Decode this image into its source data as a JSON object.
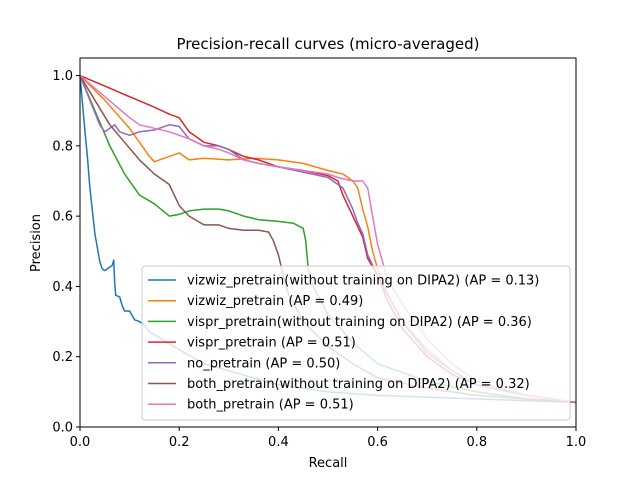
{
  "chart_data": {
    "type": "line",
    "title": "Precision-recall curves (micro-averaged)",
    "xlabel": "Recall",
    "ylabel": "Precision",
    "xlim": [
      0,
      1
    ],
    "ylim": [
      0,
      1.05
    ],
    "xticks": [
      "0.0",
      "0.2",
      "0.4",
      "0.6",
      "0.8",
      "1.0"
    ],
    "yticks": [
      "0.0",
      "0.2",
      "0.4",
      "0.6",
      "0.8",
      "1.0"
    ],
    "grid": false,
    "legend_position": "lower-right",
    "series": [
      {
        "name": "vizwiz_pretrain(without training on DIPA2) (AP = 0.13)",
        "color": "#1f77b4",
        "points": [
          [
            0,
            1.0
          ],
          [
            0.005,
            0.92
          ],
          [
            0.01,
            0.84
          ],
          [
            0.015,
            0.77
          ],
          [
            0.02,
            0.68
          ],
          [
            0.03,
            0.55
          ],
          [
            0.04,
            0.47
          ],
          [
            0.045,
            0.45
          ],
          [
            0.05,
            0.445
          ],
          [
            0.06,
            0.455
          ],
          [
            0.065,
            0.46
          ],
          [
            0.068,
            0.475
          ],
          [
            0.07,
            0.41
          ],
          [
            0.072,
            0.375
          ],
          [
            0.08,
            0.37
          ],
          [
            0.085,
            0.345
          ],
          [
            0.09,
            0.33
          ],
          [
            0.1,
            0.33
          ],
          [
            0.11,
            0.305
          ],
          [
            0.12,
            0.3
          ],
          [
            0.13,
            0.29
          ],
          [
            0.14,
            0.27
          ],
          [
            0.16,
            0.255
          ],
          [
            0.2,
            0.22
          ],
          [
            0.25,
            0.18
          ],
          [
            0.3,
            0.16
          ],
          [
            0.35,
            0.14
          ],
          [
            0.4,
            0.12
          ],
          [
            0.45,
            0.11
          ],
          [
            0.5,
            0.1
          ],
          [
            0.6,
            0.09
          ],
          [
            0.7,
            0.085
          ],
          [
            0.8,
            0.08
          ],
          [
            0.9,
            0.075
          ],
          [
            1.0,
            0.07
          ]
        ]
      },
      {
        "name": "vizwiz_pretrain (AP = 0.49)",
        "color": "#ff7f0e",
        "points": [
          [
            0,
            1.0
          ],
          [
            0.05,
            0.93
          ],
          [
            0.1,
            0.85
          ],
          [
            0.13,
            0.79
          ],
          [
            0.14,
            0.77
          ],
          [
            0.15,
            0.755
          ],
          [
            0.18,
            0.77
          ],
          [
            0.2,
            0.78
          ],
          [
            0.22,
            0.76
          ],
          [
            0.25,
            0.765
          ],
          [
            0.3,
            0.76
          ],
          [
            0.35,
            0.765
          ],
          [
            0.4,
            0.76
          ],
          [
            0.45,
            0.75
          ],
          [
            0.5,
            0.73
          ],
          [
            0.53,
            0.72
          ],
          [
            0.55,
            0.7
          ],
          [
            0.56,
            0.68
          ],
          [
            0.57,
            0.62
          ],
          [
            0.58,
            0.57
          ],
          [
            0.59,
            0.5
          ],
          [
            0.6,
            0.45
          ],
          [
            0.62,
            0.38
          ],
          [
            0.65,
            0.3
          ],
          [
            0.7,
            0.22
          ],
          [
            0.75,
            0.16
          ],
          [
            0.8,
            0.12
          ],
          [
            0.9,
            0.09
          ],
          [
            1.0,
            0.07
          ]
        ]
      },
      {
        "name": "vispr_pretrain(without training on DIPA2) (AP = 0.36)",
        "color": "#2ca02c",
        "points": [
          [
            0,
            1.0
          ],
          [
            0.03,
            0.9
          ],
          [
            0.06,
            0.8
          ],
          [
            0.09,
            0.72
          ],
          [
            0.12,
            0.66
          ],
          [
            0.15,
            0.635
          ],
          [
            0.18,
            0.6
          ],
          [
            0.2,
            0.605
          ],
          [
            0.22,
            0.615
          ],
          [
            0.25,
            0.62
          ],
          [
            0.28,
            0.62
          ],
          [
            0.3,
            0.615
          ],
          [
            0.33,
            0.6
          ],
          [
            0.36,
            0.59
          ],
          [
            0.4,
            0.585
          ],
          [
            0.43,
            0.58
          ],
          [
            0.45,
            0.565
          ],
          [
            0.455,
            0.53
          ],
          [
            0.46,
            0.45
          ],
          [
            0.47,
            0.4
          ],
          [
            0.5,
            0.32
          ],
          [
            0.55,
            0.24
          ],
          [
            0.6,
            0.18
          ],
          [
            0.7,
            0.13
          ],
          [
            0.8,
            0.1
          ],
          [
            0.9,
            0.08
          ],
          [
            1.0,
            0.07
          ]
        ]
      },
      {
        "name": "vispr_pretrain (AP = 0.51)",
        "color": "#d62728",
        "points": [
          [
            0,
            1.0
          ],
          [
            0.05,
            0.97
          ],
          [
            0.1,
            0.94
          ],
          [
            0.15,
            0.91
          ],
          [
            0.18,
            0.89
          ],
          [
            0.2,
            0.88
          ],
          [
            0.22,
            0.84
          ],
          [
            0.25,
            0.81
          ],
          [
            0.28,
            0.8
          ],
          [
            0.3,
            0.79
          ],
          [
            0.33,
            0.77
          ],
          [
            0.36,
            0.76
          ],
          [
            0.4,
            0.74
          ],
          [
            0.45,
            0.73
          ],
          [
            0.5,
            0.715
          ],
          [
            0.52,
            0.7
          ],
          [
            0.53,
            0.66
          ],
          [
            0.55,
            0.6
          ],
          [
            0.56,
            0.57
          ],
          [
            0.57,
            0.54
          ],
          [
            0.58,
            0.48
          ],
          [
            0.6,
            0.43
          ],
          [
            0.62,
            0.36
          ],
          [
            0.65,
            0.28
          ],
          [
            0.7,
            0.2
          ],
          [
            0.75,
            0.15
          ],
          [
            0.8,
            0.12
          ],
          [
            0.9,
            0.09
          ],
          [
            1.0,
            0.07
          ]
        ]
      },
      {
        "name": "no_pretrain (AP = 0.50)",
        "color": "#9467bd",
        "points": [
          [
            0,
            1.0
          ],
          [
            0.02,
            0.93
          ],
          [
            0.04,
            0.86
          ],
          [
            0.05,
            0.84
          ],
          [
            0.07,
            0.86
          ],
          [
            0.08,
            0.84
          ],
          [
            0.1,
            0.83
          ],
          [
            0.12,
            0.84
          ],
          [
            0.15,
            0.845
          ],
          [
            0.18,
            0.86
          ],
          [
            0.2,
            0.855
          ],
          [
            0.22,
            0.82
          ],
          [
            0.25,
            0.8
          ],
          [
            0.28,
            0.8
          ],
          [
            0.3,
            0.79
          ],
          [
            0.33,
            0.76
          ],
          [
            0.36,
            0.75
          ],
          [
            0.4,
            0.74
          ],
          [
            0.45,
            0.725
          ],
          [
            0.5,
            0.71
          ],
          [
            0.53,
            0.68
          ],
          [
            0.55,
            0.62
          ],
          [
            0.56,
            0.58
          ],
          [
            0.57,
            0.55
          ],
          [
            0.58,
            0.49
          ],
          [
            0.6,
            0.43
          ],
          [
            0.63,
            0.35
          ],
          [
            0.66,
            0.28
          ],
          [
            0.7,
            0.21
          ],
          [
            0.75,
            0.16
          ],
          [
            0.8,
            0.12
          ],
          [
            0.9,
            0.09
          ],
          [
            1.0,
            0.07
          ]
        ]
      },
      {
        "name": "both_pretrain(without training on DIPA2) (AP = 0.32)",
        "color": "#8c564b",
        "points": [
          [
            0,
            1.0
          ],
          [
            0.03,
            0.93
          ],
          [
            0.06,
            0.86
          ],
          [
            0.09,
            0.81
          ],
          [
            0.12,
            0.76
          ],
          [
            0.15,
            0.72
          ],
          [
            0.18,
            0.69
          ],
          [
            0.2,
            0.63
          ],
          [
            0.22,
            0.6
          ],
          [
            0.25,
            0.575
          ],
          [
            0.28,
            0.575
          ],
          [
            0.3,
            0.565
          ],
          [
            0.33,
            0.56
          ],
          [
            0.36,
            0.56
          ],
          [
            0.38,
            0.555
          ],
          [
            0.39,
            0.53
          ],
          [
            0.4,
            0.49
          ],
          [
            0.41,
            0.43
          ],
          [
            0.42,
            0.38
          ],
          [
            0.45,
            0.3
          ],
          [
            0.5,
            0.23
          ],
          [
            0.55,
            0.18
          ],
          [
            0.6,
            0.14
          ],
          [
            0.7,
            0.11
          ],
          [
            0.8,
            0.09
          ],
          [
            0.9,
            0.08
          ],
          [
            1.0,
            0.07
          ]
        ]
      },
      {
        "name": "both_pretrain (AP = 0.51)",
        "color": "#e377c2",
        "points": [
          [
            0,
            1.0
          ],
          [
            0.05,
            0.94
          ],
          [
            0.1,
            0.88
          ],
          [
            0.12,
            0.86
          ],
          [
            0.15,
            0.85
          ],
          [
            0.18,
            0.84
          ],
          [
            0.2,
            0.83
          ],
          [
            0.22,
            0.82
          ],
          [
            0.25,
            0.8
          ],
          [
            0.28,
            0.79
          ],
          [
            0.3,
            0.78
          ],
          [
            0.33,
            0.76
          ],
          [
            0.36,
            0.75
          ],
          [
            0.4,
            0.74
          ],
          [
            0.45,
            0.73
          ],
          [
            0.5,
            0.72
          ],
          [
            0.52,
            0.71
          ],
          [
            0.55,
            0.7
          ],
          [
            0.57,
            0.7
          ],
          [
            0.58,
            0.68
          ],
          [
            0.59,
            0.6
          ],
          [
            0.6,
            0.52
          ],
          [
            0.61,
            0.47
          ],
          [
            0.62,
            0.42
          ],
          [
            0.65,
            0.35
          ],
          [
            0.7,
            0.25
          ],
          [
            0.75,
            0.18
          ],
          [
            0.8,
            0.13
          ],
          [
            0.9,
            0.09
          ],
          [
            1.0,
            0.07
          ]
        ]
      }
    ]
  }
}
